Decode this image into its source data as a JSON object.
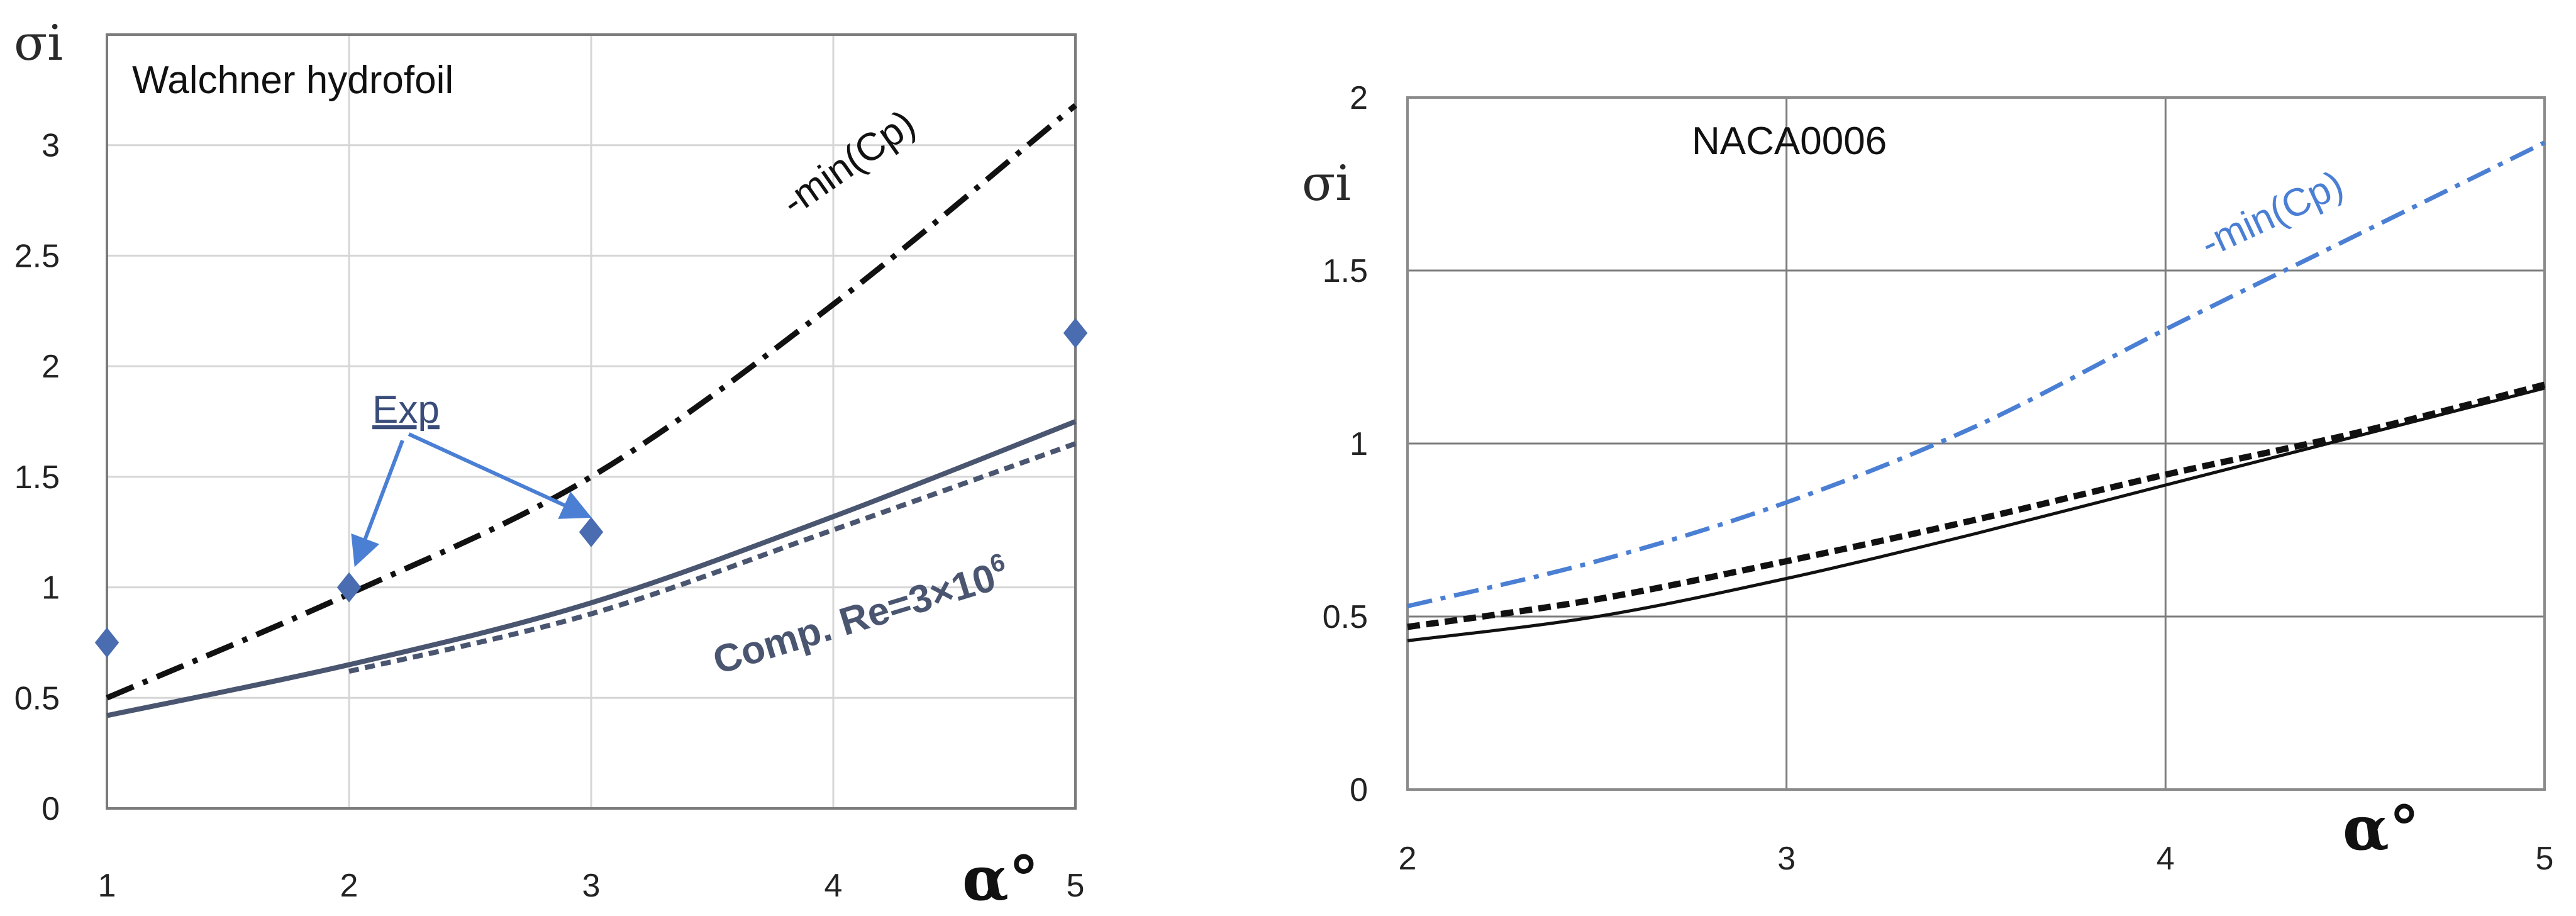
{
  "chart_data": [
    {
      "type": "line",
      "title": "Walchner hydrofoil",
      "xlabel": "α°",
      "ylabel": "σi",
      "xlim": [
        1,
        5
      ],
      "ylim": [
        0,
        3.5
      ],
      "x_ticks": [
        "1",
        "2",
        "3",
        "4",
        "5"
      ],
      "y_ticks": [
        "0",
        "0.5",
        "1",
        "1.5",
        "2",
        "2.5",
        "3"
      ],
      "grid": true,
      "colors": {
        "min_cp": "#111111",
        "comp": "#4a5570",
        "exp": "#4a6cb0",
        "arrow": "#4a7fd4"
      },
      "series": [
        {
          "name": "-min(Cp)",
          "style": "dashdot",
          "x": [
            1,
            2,
            3,
            4,
            5
          ],
          "values": [
            0.5,
            0.97,
            1.5,
            2.28,
            3.18
          ]
        },
        {
          "name": "Comp. Re=3×10⁶ (solid)",
          "style": "solid",
          "x": [
            1,
            2,
            3,
            4,
            5
          ],
          "values": [
            0.42,
            0.65,
            0.93,
            1.32,
            1.75
          ]
        },
        {
          "name": "Comp. Re=3×10⁶ (dashed)",
          "style": "dashed",
          "x": [
            2,
            3,
            4,
            5
          ],
          "values": [
            0.62,
            0.88,
            1.26,
            1.65
          ]
        },
        {
          "name": "Exp",
          "style": "marker",
          "x": [
            1,
            2,
            3,
            5
          ],
          "values": [
            0.75,
            1.0,
            1.25,
            2.15
          ]
        }
      ],
      "annotations": {
        "min_cp": "-min(Cp)",
        "exp": "Exp",
        "comp_prefix": "Comp. Re=3×10",
        "comp_exp": "6"
      }
    },
    {
      "type": "line",
      "title": "NACA0006",
      "xlabel": "α°",
      "ylabel": "σi",
      "xlim": [
        2,
        5
      ],
      "ylim": [
        0,
        2
      ],
      "x_ticks": [
        "2",
        "3",
        "4",
        "5"
      ],
      "y_ticks": [
        "0",
        "0.5",
        "1",
        "1.5",
        "2"
      ],
      "grid": true,
      "colors": {
        "min_cp": "#4a7fd4",
        "solid": "#111111",
        "dashed": "#111111"
      },
      "series": [
        {
          "name": "-min(Cp)",
          "style": "dashdot",
          "x": [
            2,
            2.5,
            3,
            3.5,
            4,
            4.5,
            5
          ],
          "values": [
            0.53,
            0.66,
            0.83,
            1.05,
            1.33,
            1.6,
            1.87
          ]
        },
        {
          "name": "solid",
          "style": "solid",
          "x": [
            2,
            2.5,
            3,
            3.5,
            4,
            4.5,
            5
          ],
          "values": [
            0.43,
            0.5,
            0.61,
            0.74,
            0.88,
            1.02,
            1.16
          ]
        },
        {
          "name": "dashed",
          "style": "dashed",
          "x": [
            2,
            2.5,
            3,
            3.5,
            4,
            4.5,
            5
          ],
          "values": [
            0.47,
            0.55,
            0.66,
            0.78,
            0.91,
            1.03,
            1.17
          ]
        }
      ],
      "annotations": {
        "min_cp": "-min(Cp)"
      }
    }
  ]
}
